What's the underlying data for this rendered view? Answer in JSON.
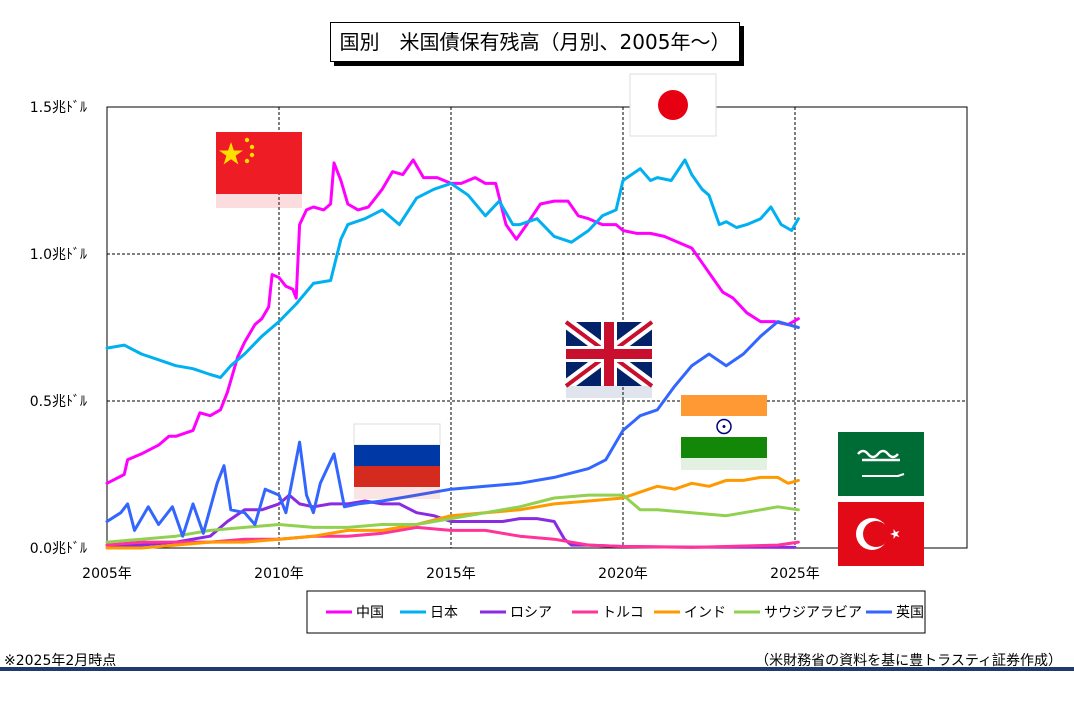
{
  "title": "国別　米国債保有残高（月別、2005年～）",
  "footnote": "※2025年2月時点",
  "source": "（米財務省の資料を基に豊トラスティ証券作成）",
  "colors": {
    "china": "#ff00ff",
    "japan": "#00b0f0",
    "russia": "#8a2be2",
    "turkey": "#ff3399",
    "india": "#ff9900",
    "saudi": "#92d050",
    "uk": "#3366ff",
    "bottom_bar": "#1f3a6e"
  },
  "flags": [
    {
      "name": "china-flag",
      "country": "中国"
    },
    {
      "name": "japan-flag",
      "country": "日本"
    },
    {
      "name": "uk-flag",
      "country": "英国"
    },
    {
      "name": "russia-flag",
      "country": "ロシア"
    },
    {
      "name": "india-flag",
      "country": "インド"
    },
    {
      "name": "saudi-flag",
      "country": "サウジアラビア"
    },
    {
      "name": "turkey-flag",
      "country": "トルコ"
    }
  ],
  "chart_data": {
    "type": "line",
    "title": "国別　米国債保有残高（月別、2005年～）",
    "xlabel": "",
    "ylabel": "",
    "xlim": [
      2005,
      2030
    ],
    "ylim": [
      0,
      1.5
    ],
    "x_ticks": [
      "2005年",
      "2010年",
      "2015年",
      "2020年",
      "2025年"
    ],
    "x_tick_values": [
      2005,
      2010,
      2015,
      2020,
      2025
    ],
    "y_ticks": [
      "0.0兆ﾄﾞﾙ",
      "0.5兆ﾄﾞﾙ",
      "1.0兆ﾄﾞﾙ",
      "1.5兆ﾄﾞﾙ"
    ],
    "y_tick_values": [
      0,
      0.5,
      1.0,
      1.5
    ],
    "grid": "dashed",
    "legend_position": "bottom",
    "series": [
      {
        "name": "中国",
        "color": "#ff00ff",
        "points": [
          [
            2005.0,
            0.22
          ],
          [
            2005.5,
            0.25
          ],
          [
            2005.6,
            0.3
          ],
          [
            2006.0,
            0.32
          ],
          [
            2006.5,
            0.35
          ],
          [
            2006.8,
            0.38
          ],
          [
            2007.0,
            0.38
          ],
          [
            2007.5,
            0.4
          ],
          [
            2007.7,
            0.46
          ],
          [
            2008.0,
            0.45
          ],
          [
            2008.3,
            0.47
          ],
          [
            2008.5,
            0.53
          ],
          [
            2008.8,
            0.65
          ],
          [
            2009.0,
            0.7
          ],
          [
            2009.3,
            0.76
          ],
          [
            2009.5,
            0.78
          ],
          [
            2009.7,
            0.82
          ],
          [
            2009.8,
            0.93
          ],
          [
            2010.0,
            0.92
          ],
          [
            2010.2,
            0.89
          ],
          [
            2010.4,
            0.88
          ],
          [
            2010.5,
            0.85
          ],
          [
            2010.6,
            1.1
          ],
          [
            2010.8,
            1.15
          ],
          [
            2011.0,
            1.16
          ],
          [
            2011.3,
            1.15
          ],
          [
            2011.5,
            1.17
          ],
          [
            2011.6,
            1.31
          ],
          [
            2011.8,
            1.25
          ],
          [
            2012.0,
            1.17
          ],
          [
            2012.3,
            1.15
          ],
          [
            2012.6,
            1.16
          ],
          [
            2013.0,
            1.22
          ],
          [
            2013.3,
            1.28
          ],
          [
            2013.6,
            1.27
          ],
          [
            2013.9,
            1.32
          ],
          [
            2014.2,
            1.26
          ],
          [
            2014.6,
            1.26
          ],
          [
            2015.0,
            1.24
          ],
          [
            2015.3,
            1.24
          ],
          [
            2015.7,
            1.26
          ],
          [
            2016.0,
            1.24
          ],
          [
            2016.3,
            1.24
          ],
          [
            2016.6,
            1.1
          ],
          [
            2016.9,
            1.05
          ],
          [
            2017.2,
            1.1
          ],
          [
            2017.6,
            1.17
          ],
          [
            2018.0,
            1.18
          ],
          [
            2018.4,
            1.18
          ],
          [
            2018.7,
            1.13
          ],
          [
            2019.0,
            1.12
          ],
          [
            2019.4,
            1.1
          ],
          [
            2019.8,
            1.1
          ],
          [
            2020.0,
            1.08
          ],
          [
            2020.4,
            1.07
          ],
          [
            2020.8,
            1.07
          ],
          [
            2021.2,
            1.06
          ],
          [
            2021.6,
            1.04
          ],
          [
            2022.0,
            1.02
          ],
          [
            2022.3,
            0.97
          ],
          [
            2022.6,
            0.92
          ],
          [
            2022.9,
            0.87
          ],
          [
            2023.2,
            0.85
          ],
          [
            2023.6,
            0.8
          ],
          [
            2024.0,
            0.77
          ],
          [
            2024.4,
            0.77
          ],
          [
            2024.8,
            0.76
          ],
          [
            2025.1,
            0.78
          ]
        ]
      },
      {
        "name": "日本",
        "color": "#00b0f0",
        "points": [
          [
            2005.0,
            0.68
          ],
          [
            2005.5,
            0.69
          ],
          [
            2006.0,
            0.66
          ],
          [
            2006.5,
            0.64
          ],
          [
            2007.0,
            0.62
          ],
          [
            2007.5,
            0.61
          ],
          [
            2008.0,
            0.59
          ],
          [
            2008.3,
            0.58
          ],
          [
            2008.6,
            0.62
          ],
          [
            2009.0,
            0.66
          ],
          [
            2009.5,
            0.72
          ],
          [
            2010.0,
            0.77
          ],
          [
            2010.5,
            0.83
          ],
          [
            2011.0,
            0.9
          ],
          [
            2011.5,
            0.91
          ],
          [
            2011.8,
            1.05
          ],
          [
            2012.0,
            1.1
          ],
          [
            2012.5,
            1.12
          ],
          [
            2013.0,
            1.15
          ],
          [
            2013.5,
            1.1
          ],
          [
            2014.0,
            1.19
          ],
          [
            2014.5,
            1.22
          ],
          [
            2015.0,
            1.24
          ],
          [
            2015.5,
            1.2
          ],
          [
            2016.0,
            1.13
          ],
          [
            2016.4,
            1.18
          ],
          [
            2016.8,
            1.1
          ],
          [
            2017.0,
            1.1
          ],
          [
            2017.5,
            1.12
          ],
          [
            2018.0,
            1.06
          ],
          [
            2018.5,
            1.04
          ],
          [
            2019.0,
            1.08
          ],
          [
            2019.4,
            1.13
          ],
          [
            2019.8,
            1.15
          ],
          [
            2020.0,
            1.25
          ],
          [
            2020.5,
            1.29
          ],
          [
            2020.8,
            1.25
          ],
          [
            2021.0,
            1.26
          ],
          [
            2021.4,
            1.25
          ],
          [
            2021.8,
            1.32
          ],
          [
            2022.0,
            1.27
          ],
          [
            2022.3,
            1.22
          ],
          [
            2022.5,
            1.2
          ],
          [
            2022.8,
            1.1
          ],
          [
            2023.0,
            1.11
          ],
          [
            2023.3,
            1.09
          ],
          [
            2023.6,
            1.1
          ],
          [
            2024.0,
            1.12
          ],
          [
            2024.3,
            1.16
          ],
          [
            2024.6,
            1.1
          ],
          [
            2024.9,
            1.08
          ],
          [
            2025.1,
            1.12
          ]
        ]
      },
      {
        "name": "ロシア",
        "color": "#8a2be2",
        "points": [
          [
            2005.0,
            0.01
          ],
          [
            2006.0,
            0.01
          ],
          [
            2007.0,
            0.02
          ],
          [
            2008.0,
            0.04
          ],
          [
            2008.5,
            0.09
          ],
          [
            2009.0,
            0.13
          ],
          [
            2009.5,
            0.13
          ],
          [
            2010.0,
            0.15
          ],
          [
            2010.3,
            0.18
          ],
          [
            2010.6,
            0.15
          ],
          [
            2011.0,
            0.14
          ],
          [
            2011.5,
            0.15
          ],
          [
            2012.0,
            0.15
          ],
          [
            2012.5,
            0.16
          ],
          [
            2013.0,
            0.15
          ],
          [
            2013.5,
            0.15
          ],
          [
            2014.0,
            0.12
          ],
          [
            2014.5,
            0.11
          ],
          [
            2015.0,
            0.09
          ],
          [
            2015.5,
            0.09
          ],
          [
            2016.0,
            0.09
          ],
          [
            2016.5,
            0.09
          ],
          [
            2017.0,
            0.1
          ],
          [
            2017.5,
            0.1
          ],
          [
            2018.0,
            0.09
          ],
          [
            2018.3,
            0.03
          ],
          [
            2018.5,
            0.01
          ],
          [
            2019.0,
            0.01
          ],
          [
            2020.0,
            0.005
          ],
          [
            2022.0,
            0.003
          ],
          [
            2025.0,
            0.002
          ]
        ]
      },
      {
        "name": "トルコ",
        "color": "#ff3399",
        "points": [
          [
            2005.0,
            0.01
          ],
          [
            2006.0,
            0.02
          ],
          [
            2007.0,
            0.02
          ],
          [
            2008.0,
            0.02
          ],
          [
            2009.0,
            0.03
          ],
          [
            2010.0,
            0.03
          ],
          [
            2011.0,
            0.04
          ],
          [
            2012.0,
            0.04
          ],
          [
            2013.0,
            0.05
          ],
          [
            2014.0,
            0.07
          ],
          [
            2015.0,
            0.06
          ],
          [
            2016.0,
            0.06
          ],
          [
            2017.0,
            0.04
          ],
          [
            2018.0,
            0.03
          ],
          [
            2019.0,
            0.01
          ],
          [
            2020.0,
            0.005
          ],
          [
            2022.0,
            0.002
          ],
          [
            2024.5,
            0.01
          ],
          [
            2025.1,
            0.02
          ]
        ]
      },
      {
        "name": "インド",
        "color": "#ff9900",
        "points": [
          [
            2005.0,
            0.0
          ],
          [
            2006.0,
            0.0
          ],
          [
            2007.0,
            0.01
          ],
          [
            2008.0,
            0.02
          ],
          [
            2009.0,
            0.02
          ],
          [
            2010.0,
            0.03
          ],
          [
            2011.0,
            0.04
          ],
          [
            2012.0,
            0.06
          ],
          [
            2013.0,
            0.06
          ],
          [
            2014.0,
            0.08
          ],
          [
            2015.0,
            0.11
          ],
          [
            2016.0,
            0.12
          ],
          [
            2017.0,
            0.13
          ],
          [
            2018.0,
            0.15
          ],
          [
            2019.0,
            0.16
          ],
          [
            2020.0,
            0.17
          ],
          [
            2020.5,
            0.19
          ],
          [
            2021.0,
            0.21
          ],
          [
            2021.5,
            0.2
          ],
          [
            2022.0,
            0.22
          ],
          [
            2022.5,
            0.21
          ],
          [
            2023.0,
            0.23
          ],
          [
            2023.5,
            0.23
          ],
          [
            2024.0,
            0.24
          ],
          [
            2024.5,
            0.24
          ],
          [
            2024.8,
            0.22
          ],
          [
            2025.1,
            0.23
          ]
        ]
      },
      {
        "name": "サウジアラビア",
        "color": "#92d050",
        "points": [
          [
            2005.0,
            0.02
          ],
          [
            2006.0,
            0.03
          ],
          [
            2007.0,
            0.04
          ],
          [
            2008.0,
            0.06
          ],
          [
            2009.0,
            0.07
          ],
          [
            2010.0,
            0.08
          ],
          [
            2011.0,
            0.07
          ],
          [
            2012.0,
            0.07
          ],
          [
            2013.0,
            0.08
          ],
          [
            2014.0,
            0.08
          ],
          [
            2015.0,
            0.1
          ],
          [
            2016.0,
            0.12
          ],
          [
            2017.0,
            0.14
          ],
          [
            2018.0,
            0.17
          ],
          [
            2019.0,
            0.18
          ],
          [
            2019.5,
            0.18
          ],
          [
            2020.0,
            0.18
          ],
          [
            2020.5,
            0.13
          ],
          [
            2021.0,
            0.13
          ],
          [
            2022.0,
            0.12
          ],
          [
            2023.0,
            0.11
          ],
          [
            2024.0,
            0.13
          ],
          [
            2024.5,
            0.14
          ],
          [
            2025.1,
            0.13
          ]
        ]
      },
      {
        "name": "英国",
        "color": "#3366ff",
        "points": [
          [
            2005.0,
            0.09
          ],
          [
            2005.4,
            0.12
          ],
          [
            2005.6,
            0.15
          ],
          [
            2005.8,
            0.06
          ],
          [
            2006.2,
            0.14
          ],
          [
            2006.5,
            0.08
          ],
          [
            2006.9,
            0.14
          ],
          [
            2007.2,
            0.04
          ],
          [
            2007.5,
            0.15
          ],
          [
            2007.8,
            0.05
          ],
          [
            2008.2,
            0.22
          ],
          [
            2008.4,
            0.28
          ],
          [
            2008.6,
            0.13
          ],
          [
            2009.0,
            0.12
          ],
          [
            2009.3,
            0.08
          ],
          [
            2009.6,
            0.2
          ],
          [
            2010.0,
            0.18
          ],
          [
            2010.2,
            0.12
          ],
          [
            2010.6,
            0.36
          ],
          [
            2010.8,
            0.18
          ],
          [
            2011.0,
            0.12
          ],
          [
            2011.2,
            0.22
          ],
          [
            2011.6,
            0.32
          ],
          [
            2011.9,
            0.14
          ],
          [
            2012.3,
            0.15
          ],
          [
            2013.0,
            0.16
          ],
          [
            2014.0,
            0.18
          ],
          [
            2015.0,
            0.2
          ],
          [
            2016.0,
            0.21
          ],
          [
            2017.0,
            0.22
          ],
          [
            2018.0,
            0.24
          ],
          [
            2019.0,
            0.27
          ],
          [
            2019.5,
            0.3
          ],
          [
            2020.0,
            0.4
          ],
          [
            2020.5,
            0.45
          ],
          [
            2021.0,
            0.47
          ],
          [
            2021.5,
            0.55
          ],
          [
            2022.0,
            0.62
          ],
          [
            2022.5,
            0.66
          ],
          [
            2023.0,
            0.62
          ],
          [
            2023.5,
            0.66
          ],
          [
            2024.0,
            0.72
          ],
          [
            2024.5,
            0.77
          ],
          [
            2025.1,
            0.75
          ]
        ]
      }
    ]
  }
}
